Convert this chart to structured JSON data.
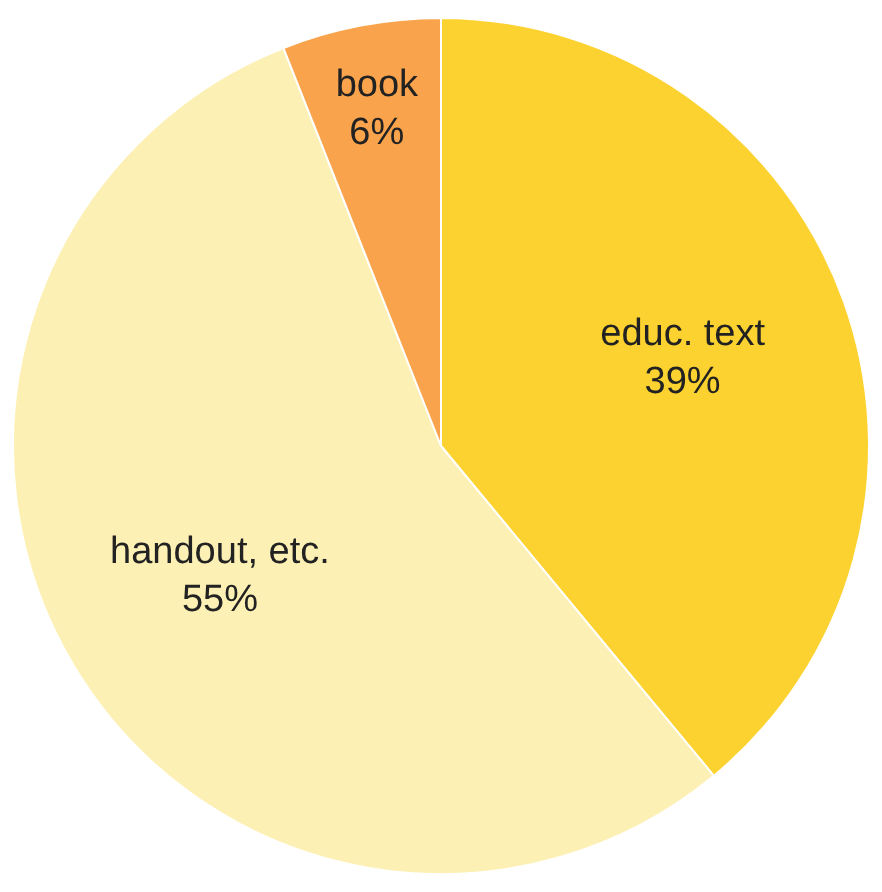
{
  "chart_data": {
    "type": "pie",
    "categories": [
      "educ. text",
      "handout, etc.",
      "book"
    ],
    "values": [
      39,
      55,
      6
    ],
    "colors": [
      "#fcd230",
      "#fdf0b4",
      "#f9a44c"
    ],
    "value_labels": [
      "39%",
      "55%",
      "6%"
    ],
    "legend": false
  }
}
